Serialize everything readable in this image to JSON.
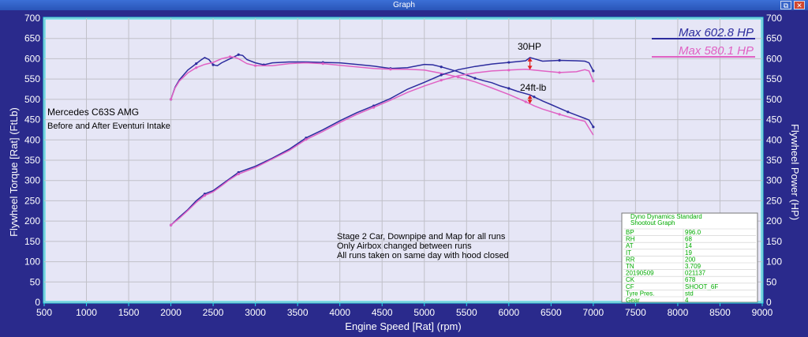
{
  "window": {
    "title": "Graph",
    "restore_glyph": "⧉",
    "close_glyph": "✕"
  },
  "colors": {
    "background": "#2a2a8c",
    "plot": "#e6e6f6",
    "frame": "#29e0e8",
    "grid": "#c0c0c8",
    "after": "#2c2c9e",
    "before": "#e062c4",
    "delta": "#e02020",
    "table": "#00aa00"
  },
  "annotations": {
    "car": "Mercedes C63S AMG",
    "subtitle": "Before and After Eventuri Intake",
    "note_lines": [
      "Stage 2 Car, Downpipe and Map for all runs",
      "Only Airbox changed between runs",
      "All runs taken on same day with hood closed"
    ],
    "hp_delta": "30HP",
    "tq_delta": "24ft-lb"
  },
  "legend": [
    "Max 602.8 HP",
    "Max 580.1 HP"
  ],
  "info_table": {
    "title_lines": [
      "Dyno Dynamics Standard",
      "Shootout Graph"
    ],
    "rows": [
      [
        "BP",
        "996.0"
      ],
      [
        "RH",
        "68"
      ],
      [
        "AT",
        "14"
      ],
      [
        "IT",
        "19"
      ],
      [
        "RR",
        "200"
      ],
      [
        "TN",
        "3.709"
      ],
      [
        "20190509",
        "021137"
      ],
      [
        "CK",
        "678"
      ],
      [
        "CF",
        "SHOOT_6F"
      ],
      [
        "Tyre Pres.",
        "std"
      ],
      [
        "Gear",
        "4"
      ]
    ]
  },
  "chart_data": {
    "type": "line",
    "xlabel": "Engine Speed [Rat] (rpm)",
    "ylabel_left": "Flywheel Torque [Rat] (FtLb)",
    "ylabel_right": "Flywheel Power (HP)",
    "xlim": [
      500,
      9000
    ],
    "ylim": [
      0,
      700
    ],
    "x_ticks": [
      500,
      1000,
      1500,
      2000,
      2500,
      3000,
      3500,
      4000,
      4500,
      5000,
      5500,
      6000,
      6500,
      7000,
      7500,
      8000,
      8500,
      9000
    ],
    "y_ticks": [
      0,
      50,
      100,
      150,
      200,
      250,
      300,
      350,
      400,
      450,
      500,
      550,
      600,
      650,
      700
    ],
    "grid": true,
    "series": [
      {
        "name": "Max 602.8 HP",
        "kind": "torque",
        "color": "#2c2c9e",
        "x": [
          2000,
          2050,
          2100,
          2200,
          2300,
          2350,
          2400,
          2450,
          2500,
          2550,
          2600,
          2700,
          2800,
          2850,
          2900,
          3000,
          3100,
          3200,
          3400,
          3600,
          3800,
          4000,
          4200,
          4400,
          4600,
          4800,
          5000,
          5100,
          5200,
          5300,
          5400,
          5500,
          5600,
          5700,
          5800,
          5900,
          6000,
          6100,
          6200,
          6250,
          6300,
          6400,
          6500,
          6600,
          6700,
          6800,
          6900,
          6950,
          7000
        ],
        "y": [
          500,
          530,
          548,
          572,
          588,
          596,
          603,
          598,
          585,
          583,
          590,
          600,
          610,
          608,
          598,
          590,
          585,
          590,
          592,
          592,
          591,
          590,
          586,
          582,
          576,
          578,
          586,
          585,
          580,
          574,
          568,
          560,
          552,
          546,
          541,
          533,
          527,
          520,
          514,
          511,
          506,
          496,
          487,
          478,
          469,
          461,
          453,
          449,
          432
        ]
      },
      {
        "name": "Max 580.1 HP",
        "kind": "torque",
        "color": "#e062c4",
        "x": [
          2000,
          2050,
          2100,
          2200,
          2300,
          2400,
          2500,
          2600,
          2700,
          2750,
          2800,
          2900,
          3000,
          3200,
          3400,
          3600,
          3800,
          4000,
          4200,
          4400,
          4600,
          4800,
          5000,
          5200,
          5400,
          5600,
          5800,
          6000,
          6200,
          6250,
          6300,
          6400,
          6600,
          6800,
          6900,
          7000
        ],
        "y": [
          500,
          528,
          545,
          565,
          578,
          586,
          591,
          600,
          605,
          604,
          600,
          588,
          583,
          583,
          588,
          590,
          588,
          584,
          580,
          576,
          574,
          574,
          572,
          564,
          555,
          543,
          528,
          512,
          494,
          489,
          484,
          476,
          463,
          451,
          446,
          412
        ]
      },
      {
        "name": "Max 602.8 HP",
        "kind": "power",
        "color": "#2c2c9e",
        "x": [
          2000,
          2100,
          2200,
          2300,
          2400,
          2500,
          2600,
          2700,
          2800,
          3000,
          3200,
          3400,
          3600,
          3800,
          4000,
          4200,
          4400,
          4600,
          4800,
          5000,
          5200,
          5400,
          5600,
          5800,
          6000,
          6200,
          6250,
          6400,
          6600,
          6800,
          6900,
          6950,
          7000
        ],
        "y": [
          190,
          210,
          228,
          250,
          267,
          275,
          290,
          305,
          320,
          335,
          355,
          377,
          405,
          425,
          447,
          467,
          484,
          502,
          525,
          542,
          560,
          573,
          581,
          587,
          591,
          595,
          603,
          594,
          596,
          595,
          594,
          590,
          570
        ]
      },
      {
        "name": "Max 580.1 HP",
        "kind": "power",
        "color": "#e062c4",
        "x": [
          2000,
          2100,
          2200,
          2300,
          2400,
          2500,
          2600,
          2700,
          2800,
          3000,
          3200,
          3400,
          3600,
          3800,
          4000,
          4200,
          4400,
          4600,
          4800,
          5000,
          5200,
          5400,
          5600,
          5800,
          6000,
          6200,
          6250,
          6400,
          6600,
          6800,
          6900,
          6950,
          7000
        ],
        "y": [
          190,
          207,
          226,
          246,
          263,
          272,
          287,
          303,
          316,
          332,
          353,
          374,
          401,
          421,
          443,
          463,
          480,
          498,
          517,
          533,
          547,
          558,
          565,
          570,
          572,
          574,
          573,
          570,
          566,
          568,
          573,
          570,
          545
        ]
      }
    ]
  }
}
